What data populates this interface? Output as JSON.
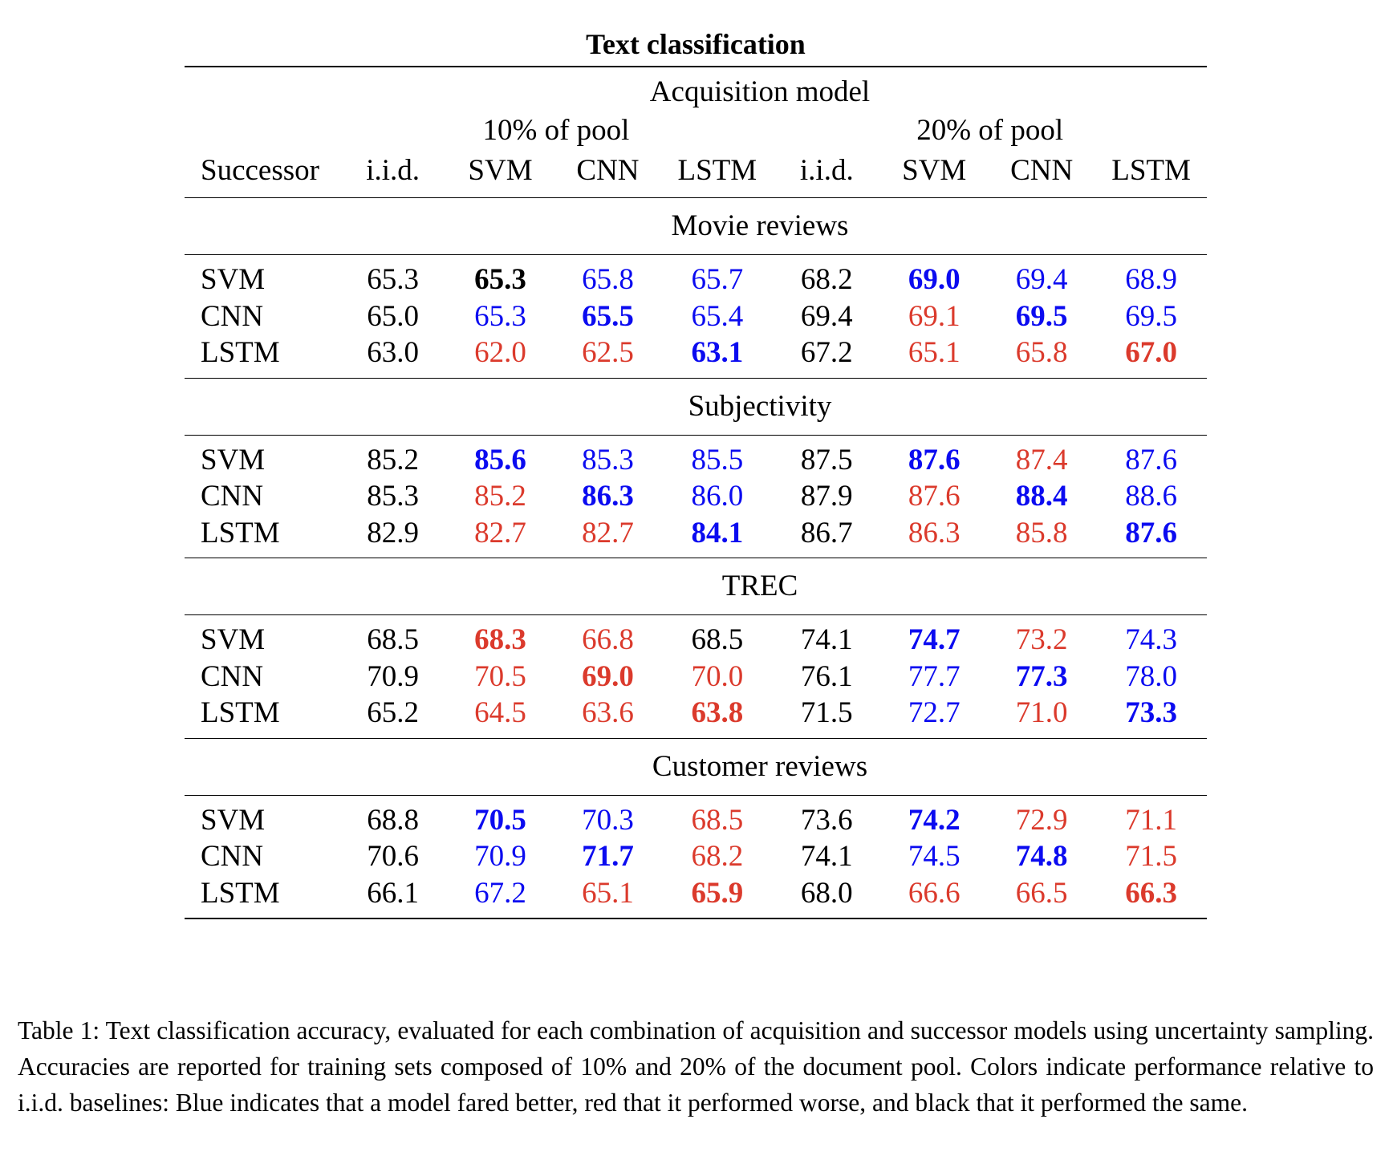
{
  "title": "Text classification",
  "header": {
    "acquisition_label": "Acquisition model",
    "group1": "10% of pool",
    "group2": "20% of pool",
    "columns": [
      "Successor",
      "i.i.d.",
      "SVM",
      "CNN",
      "LSTM",
      "i.i.d.",
      "SVM",
      "CNN",
      "LSTM"
    ]
  },
  "colors": {
    "better": "#0b0bf0",
    "worse": "#db3a2c",
    "same": "#000000"
  },
  "sections": [
    {
      "name": "Movie reviews",
      "rows": [
        {
          "label": "SVM",
          "cells": [
            {
              "v": "65.3",
              "c": "black",
              "b": false
            },
            {
              "v": "65.3",
              "c": "black",
              "b": true
            },
            {
              "v": "65.8",
              "c": "blue",
              "b": false
            },
            {
              "v": "65.7",
              "c": "blue",
              "b": false
            },
            {
              "v": "68.2",
              "c": "black",
              "b": false
            },
            {
              "v": "69.0",
              "c": "blue",
              "b": true
            },
            {
              "v": "69.4",
              "c": "blue",
              "b": false
            },
            {
              "v": "68.9",
              "c": "blue",
              "b": false
            }
          ]
        },
        {
          "label": "CNN",
          "cells": [
            {
              "v": "65.0",
              "c": "black",
              "b": false
            },
            {
              "v": "65.3",
              "c": "blue",
              "b": false
            },
            {
              "v": "65.5",
              "c": "blue",
              "b": true
            },
            {
              "v": "65.4",
              "c": "blue",
              "b": false
            },
            {
              "v": "69.4",
              "c": "black",
              "b": false
            },
            {
              "v": "69.1",
              "c": "red",
              "b": false
            },
            {
              "v": "69.5",
              "c": "blue",
              "b": true
            },
            {
              "v": "69.5",
              "c": "blue",
              "b": false
            }
          ]
        },
        {
          "label": "LSTM",
          "cells": [
            {
              "v": "63.0",
              "c": "black",
              "b": false
            },
            {
              "v": "62.0",
              "c": "red",
              "b": false
            },
            {
              "v": "62.5",
              "c": "red",
              "b": false
            },
            {
              "v": "63.1",
              "c": "blue",
              "b": true
            },
            {
              "v": "67.2",
              "c": "black",
              "b": false
            },
            {
              "v": "65.1",
              "c": "red",
              "b": false
            },
            {
              "v": "65.8",
              "c": "red",
              "b": false
            },
            {
              "v": "67.0",
              "c": "red",
              "b": true
            }
          ]
        }
      ]
    },
    {
      "name": "Subjectivity",
      "rows": [
        {
          "label": "SVM",
          "cells": [
            {
              "v": "85.2",
              "c": "black",
              "b": false
            },
            {
              "v": "85.6",
              "c": "blue",
              "b": true
            },
            {
              "v": "85.3",
              "c": "blue",
              "b": false
            },
            {
              "v": "85.5",
              "c": "blue",
              "b": false
            },
            {
              "v": "87.5",
              "c": "black",
              "b": false
            },
            {
              "v": "87.6",
              "c": "blue",
              "b": true
            },
            {
              "v": "87.4",
              "c": "red",
              "b": false
            },
            {
              "v": "87.6",
              "c": "blue",
              "b": false
            }
          ]
        },
        {
          "label": "CNN",
          "cells": [
            {
              "v": "85.3",
              "c": "black",
              "b": false
            },
            {
              "v": "85.2",
              "c": "red",
              "b": false
            },
            {
              "v": "86.3",
              "c": "blue",
              "b": true
            },
            {
              "v": "86.0",
              "c": "blue",
              "b": false
            },
            {
              "v": "87.9",
              "c": "black",
              "b": false
            },
            {
              "v": "87.6",
              "c": "red",
              "b": false
            },
            {
              "v": "88.4",
              "c": "blue",
              "b": true
            },
            {
              "v": "88.6",
              "c": "blue",
              "b": false
            }
          ]
        },
        {
          "label": "LSTM",
          "cells": [
            {
              "v": "82.9",
              "c": "black",
              "b": false
            },
            {
              "v": "82.7",
              "c": "red",
              "b": false
            },
            {
              "v": "82.7",
              "c": "red",
              "b": false
            },
            {
              "v": "84.1",
              "c": "blue",
              "b": true
            },
            {
              "v": "86.7",
              "c": "black",
              "b": false
            },
            {
              "v": "86.3",
              "c": "red",
              "b": false
            },
            {
              "v": "85.8",
              "c": "red",
              "b": false
            },
            {
              "v": "87.6",
              "c": "blue",
              "b": true
            }
          ]
        }
      ]
    },
    {
      "name": "TREC",
      "rows": [
        {
          "label": "SVM",
          "cells": [
            {
              "v": "68.5",
              "c": "black",
              "b": false
            },
            {
              "v": "68.3",
              "c": "red",
              "b": true
            },
            {
              "v": "66.8",
              "c": "red",
              "b": false
            },
            {
              "v": "68.5",
              "c": "black",
              "b": false
            },
            {
              "v": "74.1",
              "c": "black",
              "b": false
            },
            {
              "v": "74.7",
              "c": "blue",
              "b": true
            },
            {
              "v": "73.2",
              "c": "red",
              "b": false
            },
            {
              "v": "74.3",
              "c": "blue",
              "b": false
            }
          ]
        },
        {
          "label": "CNN",
          "cells": [
            {
              "v": "70.9",
              "c": "black",
              "b": false
            },
            {
              "v": "70.5",
              "c": "red",
              "b": false
            },
            {
              "v": "69.0",
              "c": "red",
              "b": true
            },
            {
              "v": "70.0",
              "c": "red",
              "b": false
            },
            {
              "v": "76.1",
              "c": "black",
              "b": false
            },
            {
              "v": "77.7",
              "c": "blue",
              "b": false
            },
            {
              "v": "77.3",
              "c": "blue",
              "b": true
            },
            {
              "v": "78.0",
              "c": "blue",
              "b": false
            }
          ]
        },
        {
          "label": "LSTM",
          "cells": [
            {
              "v": "65.2",
              "c": "black",
              "b": false
            },
            {
              "v": "64.5",
              "c": "red",
              "b": false
            },
            {
              "v": "63.6",
              "c": "red",
              "b": false
            },
            {
              "v": "63.8",
              "c": "red",
              "b": true
            },
            {
              "v": "71.5",
              "c": "black",
              "b": false
            },
            {
              "v": "72.7",
              "c": "blue",
              "b": false
            },
            {
              "v": "71.0",
              "c": "red",
              "b": false
            },
            {
              "v": "73.3",
              "c": "blue",
              "b": true
            }
          ]
        }
      ]
    },
    {
      "name": "Customer reviews",
      "rows": [
        {
          "label": "SVM",
          "cells": [
            {
              "v": "68.8",
              "c": "black",
              "b": false
            },
            {
              "v": "70.5",
              "c": "blue",
              "b": true
            },
            {
              "v": "70.3",
              "c": "blue",
              "b": false
            },
            {
              "v": "68.5",
              "c": "red",
              "b": false
            },
            {
              "v": "73.6",
              "c": "black",
              "b": false
            },
            {
              "v": "74.2",
              "c": "blue",
              "b": true
            },
            {
              "v": "72.9",
              "c": "red",
              "b": false
            },
            {
              "v": "71.1",
              "c": "red",
              "b": false
            }
          ]
        },
        {
          "label": "CNN",
          "cells": [
            {
              "v": "70.6",
              "c": "black",
              "b": false
            },
            {
              "v": "70.9",
              "c": "blue",
              "b": false
            },
            {
              "v": "71.7",
              "c": "blue",
              "b": true
            },
            {
              "v": "68.2",
              "c": "red",
              "b": false
            },
            {
              "v": "74.1",
              "c": "black",
              "b": false
            },
            {
              "v": "74.5",
              "c": "blue",
              "b": false
            },
            {
              "v": "74.8",
              "c": "blue",
              "b": true
            },
            {
              "v": "71.5",
              "c": "red",
              "b": false
            }
          ]
        },
        {
          "label": "LSTM",
          "cells": [
            {
              "v": "66.1",
              "c": "black",
              "b": false
            },
            {
              "v": "67.2",
              "c": "blue",
              "b": false
            },
            {
              "v": "65.1",
              "c": "red",
              "b": false
            },
            {
              "v": "65.9",
              "c": "red",
              "b": true
            },
            {
              "v": "68.0",
              "c": "black",
              "b": false
            },
            {
              "v": "66.6",
              "c": "red",
              "b": false
            },
            {
              "v": "66.5",
              "c": "red",
              "b": false
            },
            {
              "v": "66.3",
              "c": "red",
              "b": true
            }
          ]
        }
      ]
    }
  ],
  "caption": "Table 1: Text classification accuracy, evaluated for each combination of acquisition and successor models using uncertainty sampling. Accuracies are reported for training sets composed of 10% and 20% of the document pool. Colors indicate performance relative to i.i.d. baselines: Blue indicates that a model fared better, red that it performed worse, and black that it performed the same."
}
